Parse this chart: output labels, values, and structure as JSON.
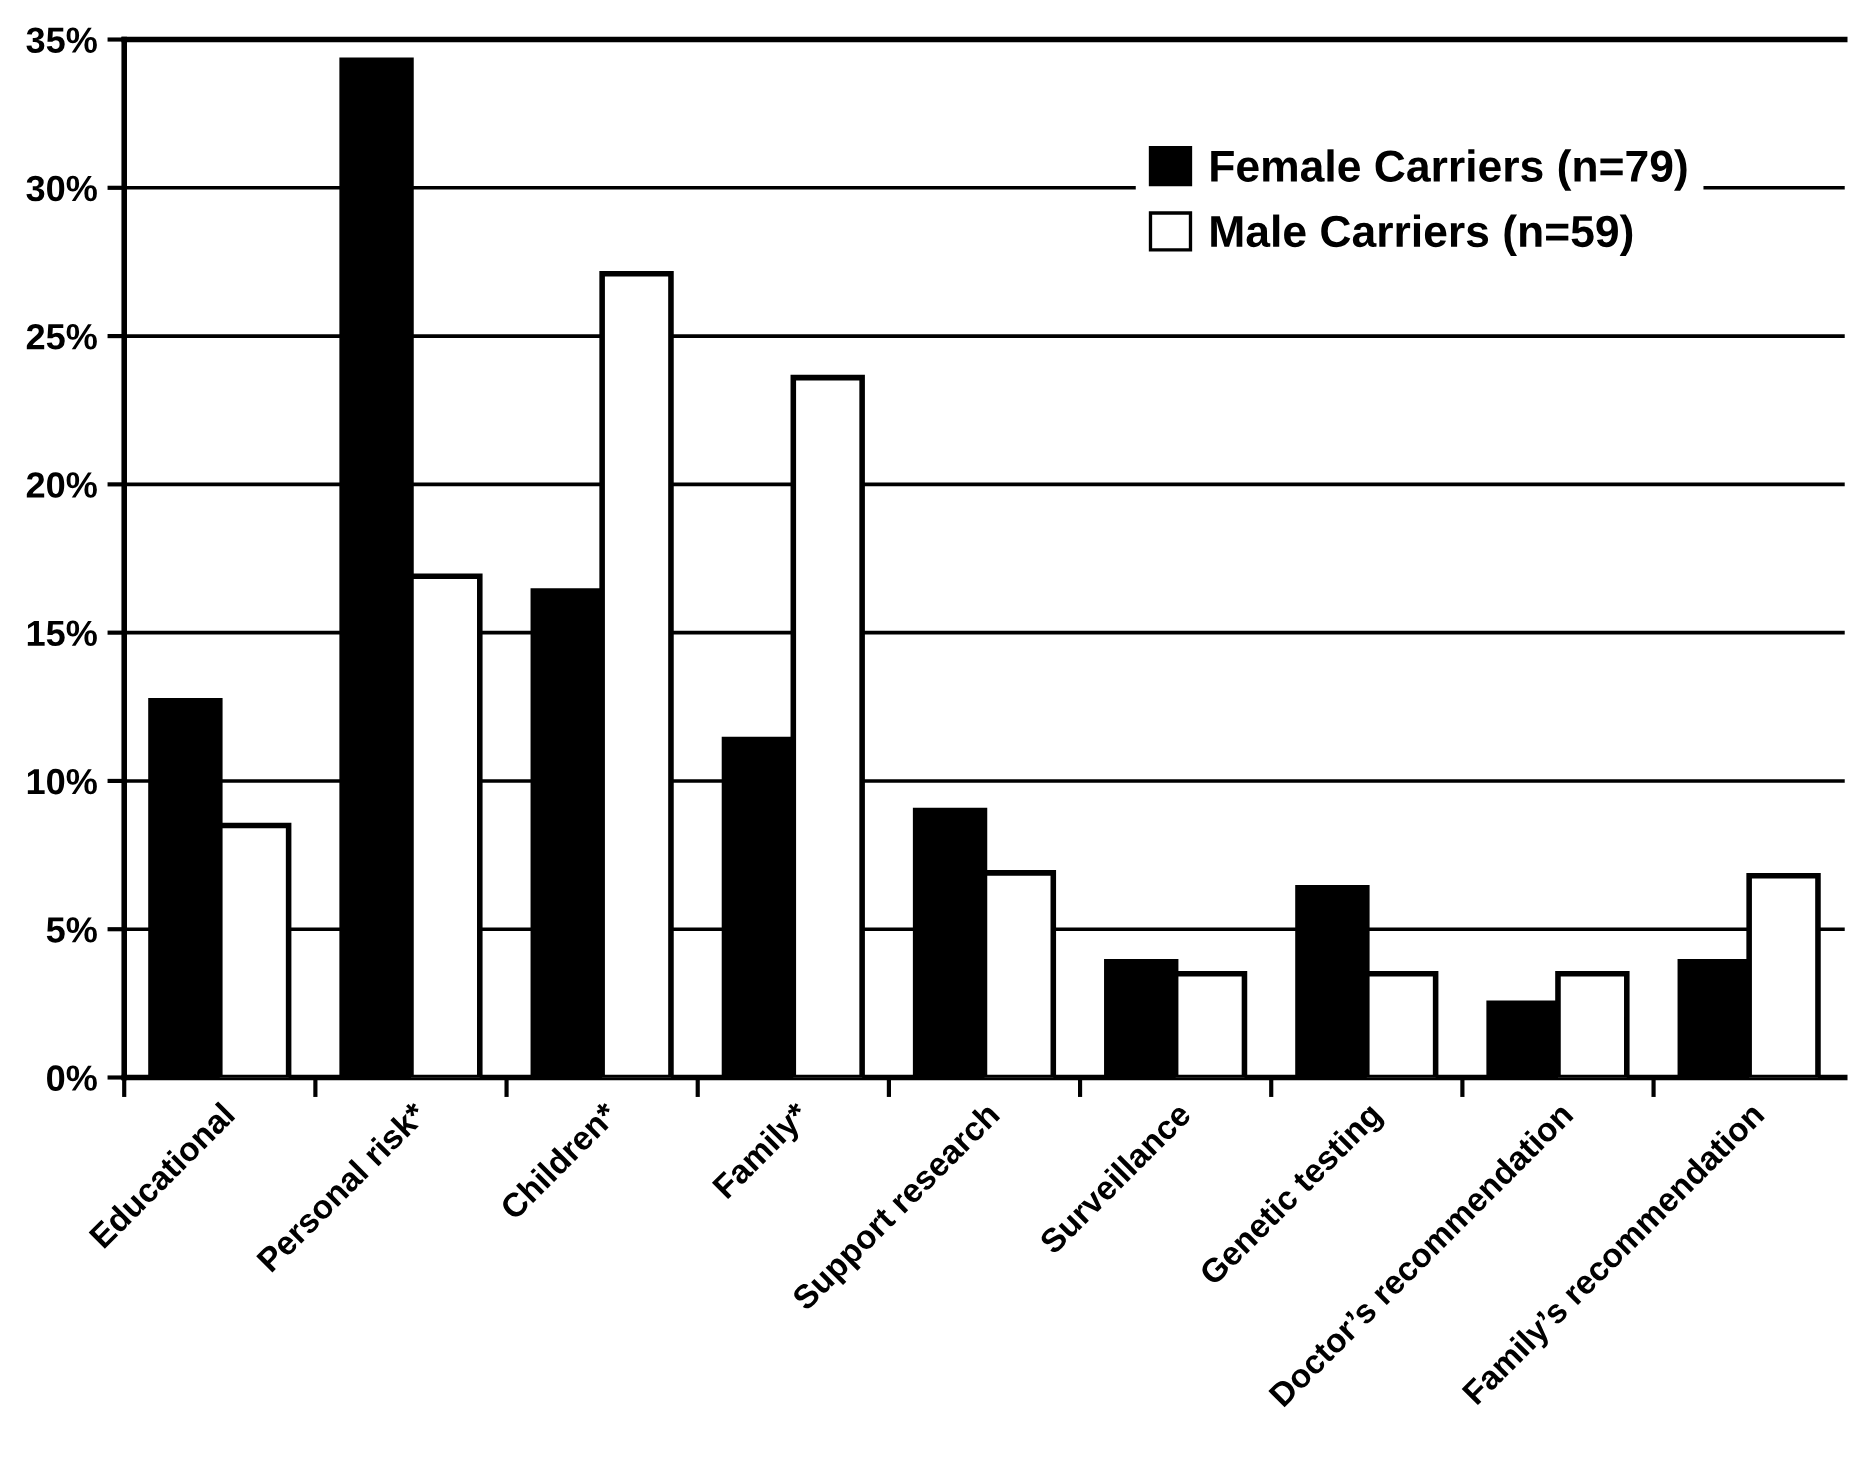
{
  "chart_data": {
    "type": "bar",
    "categories": [
      "Educational",
      "Personal risk*",
      "Children*",
      "Family*",
      "Support research",
      "Surveillance",
      "Genetic testing",
      "Doctor’s recommendation",
      "Family’s recommendation"
    ],
    "series": [
      {
        "name": "Female Carriers (n=79)",
        "color": "#000000",
        "values": [
          12.7,
          34.3,
          16.4,
          11.4,
          9.0,
          3.9,
          6.4,
          2.5,
          3.9
        ]
      },
      {
        "name": "Male Carriers (n=59)",
        "color": "#ffffff",
        "values": [
          8.5,
          16.9,
          27.1,
          23.6,
          6.9,
          3.5,
          3.5,
          3.5,
          6.8
        ]
      }
    ],
    "ylim": [
      0,
      35
    ],
    "yticks": [
      {
        "value": 0,
        "label": "0%"
      },
      {
        "value": 5,
        "label": "5%"
      },
      {
        "value": 10,
        "label": "10%"
      },
      {
        "value": 15,
        "label": "15%"
      },
      {
        "value": 20,
        "label": "20%"
      },
      {
        "value": 25,
        "label": "25%"
      },
      {
        "value": 30,
        "label": "30%"
      },
      {
        "value": 35,
        "label": "35%"
      }
    ],
    "grid": "y",
    "legend": "top right"
  }
}
